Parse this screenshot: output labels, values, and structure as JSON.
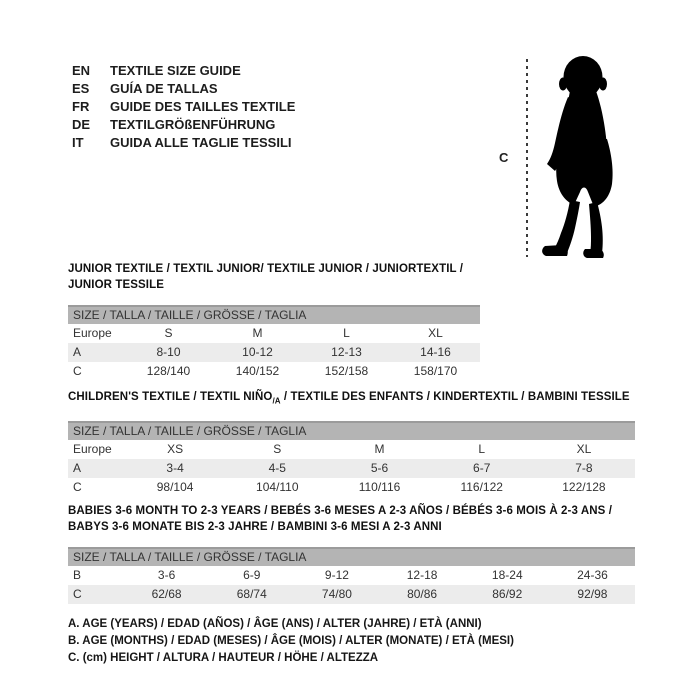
{
  "colors": {
    "band_gray": "#b4b4b4",
    "band_border": "#9b9b9b",
    "row_shaded": "#ececec",
    "text": "#1a1a1a",
    "silhouette": "#000000"
  },
  "languages": [
    {
      "code": "EN",
      "label": "TEXTILE SIZE GUIDE"
    },
    {
      "code": "ES",
      "label": "GUÍA DE TALLAS"
    },
    {
      "code": "FR",
      "label": "GUIDE DES TAILLES TEXTILE"
    },
    {
      "code": "DE",
      "label": "TEXTILGRÖßENFÜHRUNG"
    },
    {
      "code": "IT",
      "label": "GUIDA ALLE TAGLIE TESSILI"
    }
  ],
  "figure": {
    "icon": "baby-silhouette-icon",
    "measure_label": "C"
  },
  "tables": [
    {
      "id": "junior",
      "narrow": true,
      "title_lines": [
        [
          {
            "text": "JUNIOR TEXTILE / TEXTIL JUNIOR/ TEXTILE JUNIOR / JUNIORTEXTIL / JUNIOR TESSILE"
          }
        ]
      ],
      "size_header": "SIZE / TALLA / TAILLE / GRÖSSE / TAGLIA",
      "rows": [
        {
          "label": "Europe",
          "shaded": false,
          "values": [
            "S",
            "M",
            "L",
            "XL"
          ]
        },
        {
          "label": "A",
          "shaded": true,
          "values": [
            "8-10",
            "10-12",
            "12-13",
            "14-16"
          ]
        },
        {
          "label": "C",
          "shaded": false,
          "values": [
            "128/140",
            "140/152",
            "152/158",
            "158/170"
          ]
        }
      ]
    },
    {
      "id": "children",
      "narrow": false,
      "title_lines": [
        [
          {
            "text": "CHILDREN'S TEXTILE / TEXTIL NIÑO"
          },
          {
            "text": "/A",
            "sub": true
          },
          {
            "text": " / TEXTILE DES ENFANTS / KINDERTEXTIL / BAMBINI TESSILE"
          }
        ]
      ],
      "size_header": "SIZE / TALLA / TAILLE / GRÖSSE / TAGLIA",
      "rows": [
        {
          "label": "Europe",
          "shaded": false,
          "values": [
            "XS",
            "S",
            "M",
            "L",
            "XL"
          ]
        },
        {
          "label": "A",
          "shaded": true,
          "values": [
            "3-4",
            "4-5",
            "5-6",
            "6-7",
            "7-8"
          ]
        },
        {
          "label": "C",
          "shaded": false,
          "values": [
            "98/104",
            "104/110",
            "110/116",
            "116/122",
            "122/128"
          ]
        }
      ]
    },
    {
      "id": "babies",
      "narrow": false,
      "title_lines": [
        [
          {
            "text": "BABIES 3-6 MONTH TO 2-3 YEARS / BEBÉS 3-6 MESES A 2-3 AÑOS / BÉBÉS 3-6 MOIS À 2-3 ANS /"
          }
        ],
        [
          {
            "text": "BABYS 3-6 MONATE BIS 2-3 JAHRE / BAMBINI 3-6 MESI A 2-3 ANNI"
          }
        ]
      ],
      "size_header": "SIZE / TALLA / TAILLE / GRÖSSE / TAGLIA",
      "rows": [
        {
          "label": "B",
          "shaded": false,
          "values": [
            "3-6",
            "6-9",
            "9-12",
            "12-18",
            "18-24",
            "24-36"
          ]
        },
        {
          "label": "C",
          "shaded": true,
          "values": [
            "62/68",
            "68/74",
            "74/80",
            "80/86",
            "86/92",
            "92/98"
          ]
        }
      ]
    }
  ],
  "notes": [
    "A. AGE (YEARS) / EDAD (AÑOS) / ÂGE (ANS) / ALTER (JAHRE) / ETÀ (ANNI)",
    "B. AGE (MONTHS) / EDAD (MESES) / ÂGE (MOIS) / ALTER (MONATE) / ETÀ (MESI)",
    "C. (cm) HEIGHT / ALTURA / HAUTEUR / HÖHE / ALTEZZA"
  ]
}
